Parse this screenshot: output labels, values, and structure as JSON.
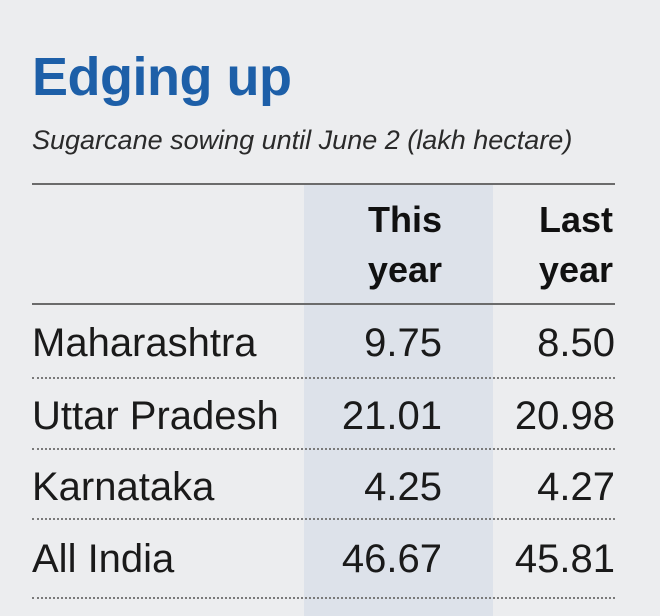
{
  "title": "Edging up",
  "subtitle": "Sugarcane sowing until June 2 (lakh hectare)",
  "colors": {
    "title": "#1d5fa8",
    "background": "#ecedef",
    "highlight_column": "#dde2ea"
  },
  "chart_data": {
    "type": "table",
    "title": "Edging up",
    "subtitle": "Sugarcane sowing until June 2 (lakh hectare)",
    "columns": [
      "",
      "This year",
      "Last year"
    ],
    "header_lines": {
      "this_year": [
        "This",
        "year"
      ],
      "last_year": [
        "Last",
        "year"
      ]
    },
    "rows": [
      {
        "state": "Maharashtra",
        "this_year": "9.75",
        "last_year": "8.50"
      },
      {
        "state": "Uttar Pradesh",
        "this_year": "21.01",
        "last_year": "20.98"
      },
      {
        "state": "Karnataka",
        "this_year": "4.25",
        "last_year": "4.27"
      },
      {
        "state": "All India",
        "this_year": "46.67",
        "last_year": "45.81"
      }
    ]
  }
}
